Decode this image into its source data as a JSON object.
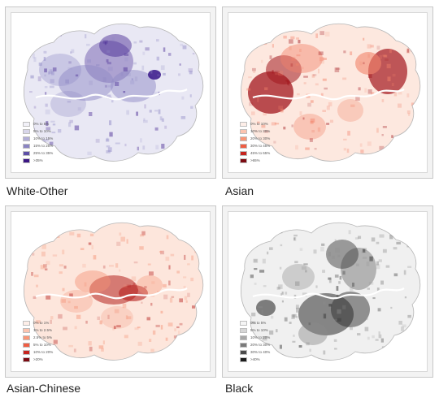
{
  "maps": [
    {
      "id": "white-other",
      "caption": "White-Other",
      "colors": {
        "fill": "#e9e8f4",
        "medium": "#8f89c5",
        "dark": "#3f1f8e"
      },
      "legend": [
        {
          "label": "0% to 5%",
          "color": "#f2f1f8"
        },
        {
          "label": "5% to 10%",
          "color": "#d8d6ea"
        },
        {
          "label": "10% to 15%",
          "color": "#b2aed8"
        },
        {
          "label": "15% to 25%",
          "color": "#8a84c2"
        },
        {
          "label": "25% to 35%",
          "color": "#5d4fa6"
        },
        {
          "label": ">35%",
          "color": "#3b1684"
        }
      ]
    },
    {
      "id": "asian",
      "caption": "Asian",
      "colors": {
        "fill": "#fde8df",
        "medium": "#f2836b",
        "dark": "#a2171d"
      },
      "legend": [
        {
          "label": "0% to 10%",
          "color": "#fdeee8"
        },
        {
          "label": "10% to 20%",
          "color": "#fcc4b0"
        },
        {
          "label": "20% to 30%",
          "color": "#f99677"
        },
        {
          "label": "30% to 45%",
          "color": "#ef5d43"
        },
        {
          "label": "45% to 65%",
          "color": "#c6251f"
        },
        {
          "label": ">65%",
          "color": "#7c0b12"
        }
      ]
    },
    {
      "id": "asian-chinese",
      "caption": "Asian-Chinese",
      "colors": {
        "fill": "#fde6dc",
        "medium": "#f49276",
        "dark": "#b5201e"
      },
      "legend": [
        {
          "label": "0% to 1%",
          "color": "#fdeee8"
        },
        {
          "label": "1% to 2.5%",
          "color": "#fcc4b0"
        },
        {
          "label": "2.5% to 5%",
          "color": "#f99677"
        },
        {
          "label": "5% to 10%",
          "color": "#ef5d43"
        },
        {
          "label": "10% to 20%",
          "color": "#c6251f"
        },
        {
          "label": ">20%",
          "color": "#7c0b12"
        }
      ]
    },
    {
      "id": "black",
      "caption": "Black",
      "colors": {
        "fill": "#f0f0f0",
        "medium": "#8a8a8a",
        "dark": "#2e2e2e"
      },
      "legend": [
        {
          "label": "0% to 5%",
          "color": "#f5f5f5"
        },
        {
          "label": "5% to 10%",
          "color": "#d6d6d6"
        },
        {
          "label": "10% to 20%",
          "color": "#a8a8a8"
        },
        {
          "label": "20% to 30%",
          "color": "#7a7a7a"
        },
        {
          "label": "30% to 40%",
          "color": "#4b4b4b"
        },
        {
          "label": ">40%",
          "color": "#1c1c1c"
        }
      ]
    }
  ]
}
